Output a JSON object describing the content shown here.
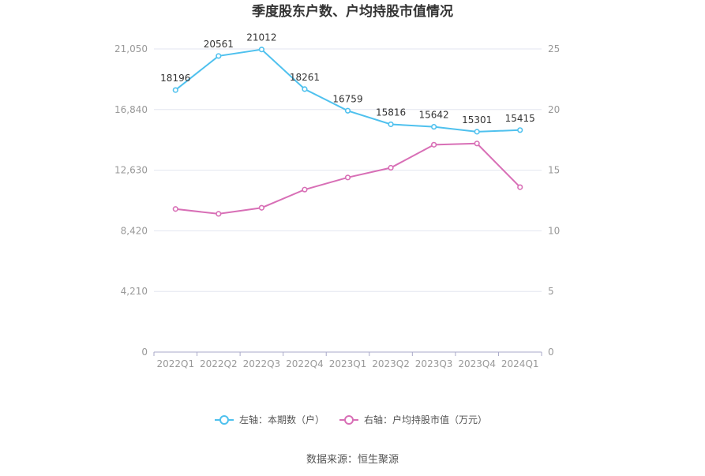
{
  "chart_data": {
    "type": "line",
    "title": "季度股东户数、户均持股市值情况",
    "categories": [
      "2022Q1",
      "2022Q2",
      "2022Q3",
      "2022Q4",
      "2023Q1",
      "2023Q2",
      "2023Q3",
      "2023Q4",
      "2024Q1"
    ],
    "left_axis": {
      "ticks": [
        "0",
        "4,210",
        "8,420",
        "12,630",
        "16,840",
        "21,050"
      ],
      "ylim": [
        0,
        21050
      ]
    },
    "right_axis": {
      "ticks": [
        "0",
        "5",
        "10",
        "15",
        "20",
        "25"
      ],
      "ylim": [
        0,
        25
      ]
    },
    "series": [
      {
        "name": "左轴：本期数（户）",
        "axis": "left",
        "color": "#4fc1ee",
        "values": [
          18196,
          20561,
          21012,
          18261,
          16759,
          15816,
          15642,
          15301,
          15415
        ],
        "labels": [
          "18196",
          "20561",
          "21012",
          "18261",
          "16759",
          "15816",
          "15642",
          "15301",
          "15415"
        ]
      },
      {
        "name": "右轴：户均持股市值（万元）",
        "axis": "right",
        "color": "#d86fb6",
        "values": [
          11.8,
          11.4,
          11.9,
          13.4,
          14.4,
          15.2,
          17.1,
          17.2,
          13.6
        ]
      }
    ],
    "grid": true,
    "legend_position": "bottom-center",
    "source": "数据来源：恒生聚源"
  }
}
